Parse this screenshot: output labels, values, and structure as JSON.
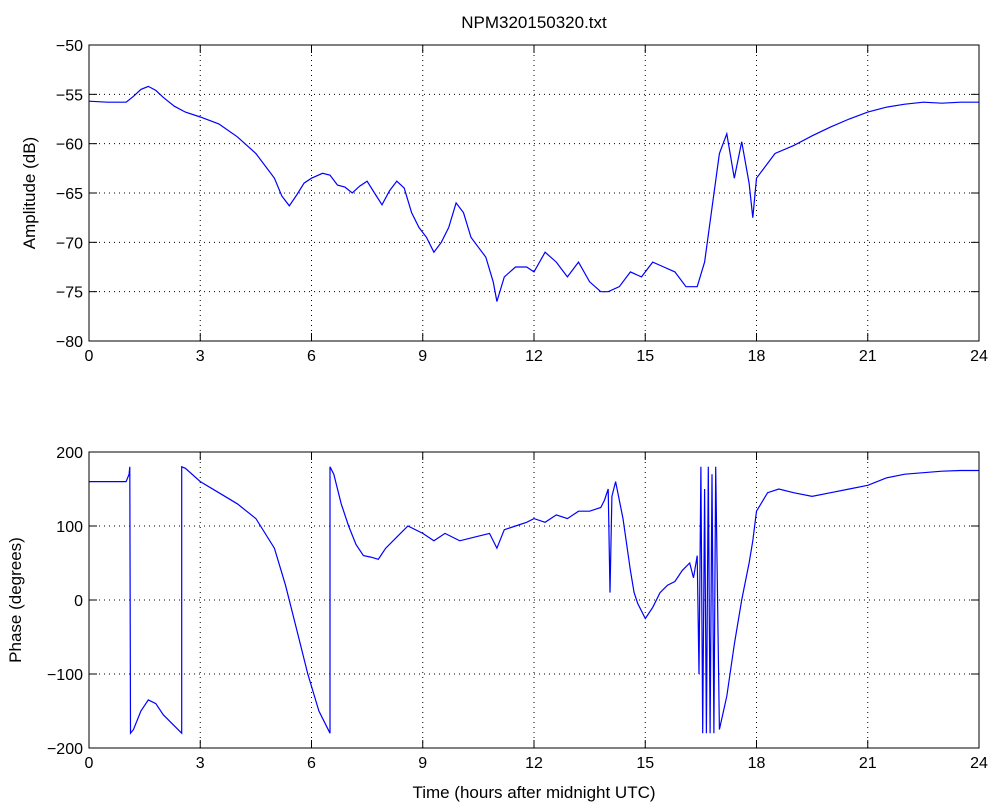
{
  "chart_data": [
    {
      "type": "line",
      "title": "NPM320150320.txt",
      "xlabel": "",
      "ylabel": "Amplitude (dB)",
      "xlim": [
        0,
        24
      ],
      "ylim": [
        -80,
        -50
      ],
      "xticks": [
        0,
        3,
        6,
        9,
        12,
        15,
        18,
        21,
        24
      ],
      "yticks": [
        -50,
        -55,
        -60,
        -65,
        -70,
        -75,
        -80
      ],
      "ytick_labels": [
        "−50",
        "−55",
        "−60",
        "−65",
        "−70",
        "−75",
        "−80"
      ],
      "grid": true,
      "series": [
        {
          "color": "#0000ff",
          "x": [
            0,
            0.5,
            1.0,
            1.2,
            1.4,
            1.6,
            1.8,
            2.0,
            2.3,
            2.6,
            3.0,
            3.5,
            4.0,
            4.5,
            5.0,
            5.2,
            5.4,
            5.6,
            5.8,
            6.0,
            6.3,
            6.5,
            6.7,
            6.9,
            7.1,
            7.3,
            7.5,
            7.7,
            7.9,
            8.1,
            8.3,
            8.5,
            8.7,
            8.9,
            9.1,
            9.3,
            9.5,
            9.7,
            9.9,
            10.1,
            10.3,
            10.5,
            10.7,
            10.9,
            11.0,
            11.2,
            11.5,
            11.8,
            12.0,
            12.3,
            12.6,
            12.9,
            13.2,
            13.5,
            13.8,
            14.0,
            14.3,
            14.6,
            14.9,
            15.2,
            15.5,
            15.8,
            16.1,
            16.4,
            16.6,
            16.8,
            17.0,
            17.2,
            17.4,
            17.6,
            17.8,
            17.9,
            18.0,
            18.5,
            19.0,
            19.5,
            20.0,
            20.5,
            21.0,
            21.5,
            22.0,
            22.5,
            23.0,
            23.5,
            24.0
          ],
          "y": [
            -55.7,
            -55.8,
            -55.8,
            -55.2,
            -54.5,
            -54.2,
            -54.6,
            -55.3,
            -56.2,
            -56.8,
            -57.3,
            -58.0,
            -59.3,
            -61.0,
            -63.5,
            -65.3,
            -66.3,
            -65.2,
            -64.0,
            -63.5,
            -63.0,
            -63.2,
            -64.2,
            -64.4,
            -65.0,
            -64.3,
            -63.8,
            -65.0,
            -66.2,
            -64.8,
            -63.8,
            -64.5,
            -67.0,
            -68.5,
            -69.5,
            -71.0,
            -70.0,
            -68.5,
            -66.0,
            -67.0,
            -69.5,
            -70.5,
            -71.5,
            -74.0,
            -76.0,
            -73.5,
            -72.5,
            -72.5,
            -73.0,
            -71.0,
            -72.0,
            -73.5,
            -72.0,
            -74.0,
            -75.0,
            -75.0,
            -74.5,
            -73.0,
            -73.5,
            -72.0,
            -72.5,
            -73.0,
            -74.5,
            -74.5,
            -72.0,
            -66.5,
            -61.0,
            -59.0,
            -63.5,
            -59.8,
            -64.0,
            -67.5,
            -63.5,
            -61.0,
            -60.2,
            -59.2,
            -58.3,
            -57.5,
            -56.8,
            -56.3,
            -56.0,
            -55.8,
            -55.9,
            -55.8,
            -55.8
          ]
        }
      ]
    },
    {
      "type": "line",
      "title": "",
      "xlabel": "Time (hours after midnight UTC)",
      "ylabel": "Phase (degrees)",
      "xlim": [
        0,
        24
      ],
      "ylim": [
        -200,
        200
      ],
      "xticks": [
        0,
        3,
        6,
        9,
        12,
        15,
        18,
        21,
        24
      ],
      "yticks": [
        200,
        100,
        0,
        -100,
        -200
      ],
      "ytick_labels": [
        "200",
        "100",
        "0",
        "−100",
        "−200"
      ],
      "grid": true,
      "series": [
        {
          "color": "#0000ff",
          "x": [
            0,
            0.5,
            1.0,
            1.08,
            1.1,
            1.12,
            1.2,
            1.4,
            1.6,
            1.8,
            2.0,
            2.3,
            2.5,
            2.5,
            2.6,
            3.0,
            3.5,
            4.0,
            4.5,
            5.0,
            5.3,
            5.6,
            5.9,
            6.2,
            6.5,
            6.5,
            6.6,
            6.8,
            7.0,
            7.2,
            7.4,
            7.6,
            7.8,
            8.0,
            8.3,
            8.6,
            9.0,
            9.3,
            9.6,
            10.0,
            10.4,
            10.8,
            11.0,
            11.2,
            11.5,
            11.8,
            12.0,
            12.3,
            12.6,
            12.9,
            13.2,
            13.5,
            13.8,
            13.9,
            14.0,
            14.05,
            14.1,
            14.2,
            14.4,
            14.6,
            14.7,
            14.8,
            15.0,
            15.2,
            15.4,
            15.6,
            15.8,
            16.0,
            16.2,
            16.3,
            16.4,
            16.45,
            16.5,
            16.55,
            16.6,
            16.65,
            16.7,
            16.75,
            16.8,
            16.85,
            16.9,
            17.0,
            17.2,
            17.4,
            17.6,
            17.8,
            17.9,
            18.0,
            18.3,
            18.6,
            19.0,
            19.5,
            20.0,
            20.5,
            21.0,
            21.5,
            22.0,
            22.5,
            23.0,
            23.5,
            24.0
          ],
          "y": [
            160,
            160,
            160,
            170,
            180,
            -180,
            -175,
            -150,
            -135,
            -140,
            -155,
            -170,
            -180,
            180,
            178,
            160,
            145,
            130,
            110,
            70,
            20,
            -40,
            -100,
            -150,
            -180,
            180,
            170,
            130,
            100,
            75,
            60,
            58,
            55,
            70,
            85,
            100,
            90,
            80,
            90,
            80,
            85,
            90,
            70,
            95,
            100,
            105,
            110,
            105,
            115,
            110,
            120,
            120,
            125,
            135,
            150,
            10,
            140,
            160,
            110,
            40,
            10,
            -5,
            -25,
            -10,
            10,
            20,
            25,
            40,
            50,
            30,
            60,
            -100,
            180,
            -180,
            150,
            -180,
            180,
            -180,
            170,
            -180,
            180,
            -175,
            -130,
            -60,
            0,
            50,
            80,
            120,
            145,
            150,
            145,
            140,
            145,
            150,
            155,
            165,
            170,
            172,
            174,
            175,
            175
          ]
        }
      ]
    }
  ]
}
